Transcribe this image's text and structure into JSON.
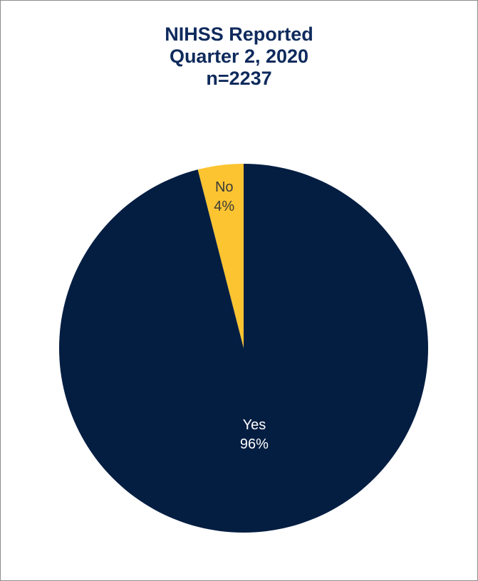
{
  "chart_data": {
    "type": "pie",
    "title_lines": [
      "NIHSS Reported",
      "Quarter 2, 2020",
      "n=2237"
    ],
    "slices": [
      {
        "label": "No",
        "value": 4,
        "value_text": "4%",
        "color": "#fcc430",
        "text_color": "#3a3a3a"
      },
      {
        "label": "Yes",
        "value": 96,
        "value_text": "96%",
        "color": "#041e42",
        "text_color": "#ffffff"
      }
    ],
    "legend": "none"
  }
}
